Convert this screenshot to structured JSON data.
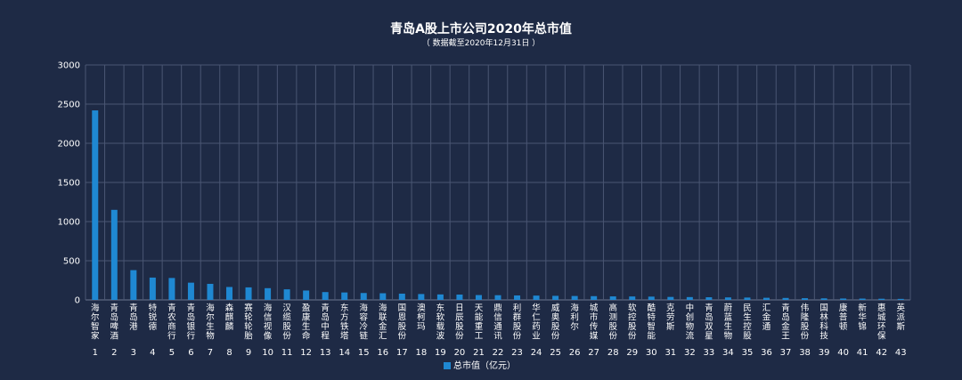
{
  "chart_data": {
    "type": "bar",
    "title": "青岛A股上市公司2020年总市值",
    "subtitle": "（ 数据截至2020年12月31日 ）",
    "ylim": [
      0,
      3000
    ],
    "yticks": [
      0,
      500,
      1000,
      1500,
      2000,
      2500,
      3000
    ],
    "grid": true,
    "legend": {
      "position": "bottom",
      "color": "#1f88d2"
    },
    "ranks": [
      "1",
      "2",
      "3",
      "4",
      "5",
      "6",
      "7",
      "8",
      "9",
      "10",
      "11",
      "12",
      "13",
      "14",
      "15",
      "16",
      "17",
      "18",
      "19",
      "20",
      "21",
      "22",
      "23",
      "24",
      "25",
      "26",
      "27",
      "28",
      "29",
      "30",
      "31",
      "32",
      "33",
      "34",
      "35",
      "36",
      "37",
      "38",
      "39",
      "40",
      "41",
      "42",
      "43"
    ],
    "categories": [
      "海尔智家",
      "青岛啤酒",
      "青岛港",
      "特锐德",
      "青农商行",
      "青岛银行",
      "海尔生物",
      "森麒麟",
      "赛轮轮胎",
      "海信视像",
      "汉缆股份",
      "盈康生命",
      "青岛中程",
      "东方铁塔",
      "海容冷链",
      "海联金汇",
      "国恩股份",
      "澳柯玛",
      "东软载波",
      "日辰股份",
      "天能重工",
      "鼎信通讯",
      "利群股份",
      "华仁药业",
      "威奥股份",
      "海利尔",
      "城市传媒",
      "高测股份",
      "软控股份",
      "酷特智能",
      "克劳斯",
      "中创物流",
      "青岛双星",
      "蔚蓝生物",
      "民生控股",
      "汇金通",
      "青岛金王",
      "伟隆股份",
      "国林科技",
      "康普顿",
      "新华锦",
      "惠城环保",
      "英派斯"
    ],
    "series": [
      {
        "name": "总市值（亿元）",
        "values": [
          2420,
          1150,
          380,
          285,
          280,
          220,
          205,
          165,
          160,
          150,
          135,
          120,
          100,
          95,
          88,
          85,
          80,
          75,
          70,
          68,
          62,
          60,
          57,
          55,
          52,
          50,
          48,
          45,
          44,
          42,
          38,
          36,
          34,
          32,
          30,
          27,
          25,
          22,
          20,
          18,
          17,
          15,
          13
        ]
      }
    ]
  }
}
